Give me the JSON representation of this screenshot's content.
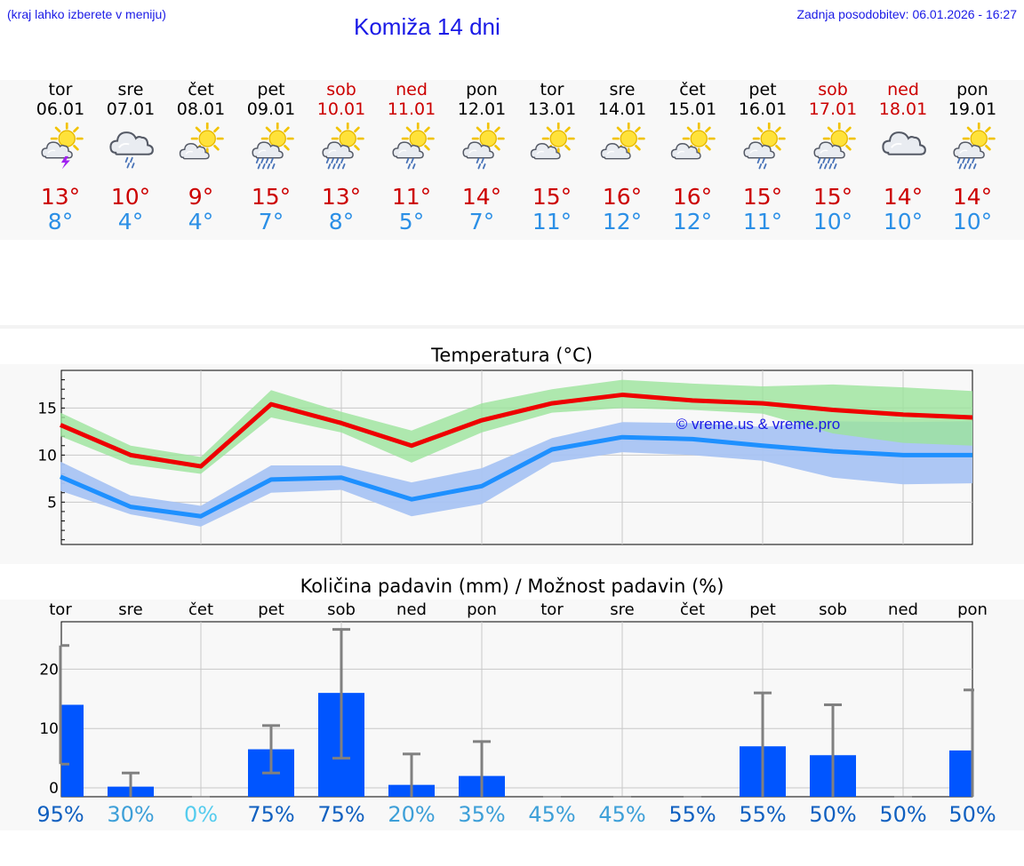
{
  "header": {
    "region_hint": "(kraj lahko izberete v meniju)",
    "title": "Komiža 14 dni",
    "last_update": "Zadnja posodobitev: 06.01.2026 - 16:27"
  },
  "forecast": [
    {
      "day": "tor",
      "date": "06.01",
      "weekend": false,
      "icon": "sun-cloud-thunder-icon",
      "tmax": "13°",
      "tmin": "8°"
    },
    {
      "day": "sre",
      "date": "07.01",
      "weekend": false,
      "icon": "cloud-rain-icon",
      "tmax": "10°",
      "tmin": "4°"
    },
    {
      "day": "čet",
      "date": "08.01",
      "weekend": false,
      "icon": "sun-cloud-icon",
      "tmax": "9°",
      "tmin": "4°"
    },
    {
      "day": "pet",
      "date": "09.01",
      "weekend": false,
      "icon": "sun-cloud-heavy-rain-icon",
      "tmax": "15°",
      "tmin": "7°"
    },
    {
      "day": "sob",
      "date": "10.01",
      "weekend": true,
      "icon": "sun-cloud-heavy-rain-icon",
      "tmax": "13°",
      "tmin": "8°"
    },
    {
      "day": "ned",
      "date": "11.01",
      "weekend": true,
      "icon": "sun-cloud-rain-icon",
      "tmax": "11°",
      "tmin": "5°"
    },
    {
      "day": "pon",
      "date": "12.01",
      "weekend": false,
      "icon": "sun-cloud-rain-icon",
      "tmax": "14°",
      "tmin": "7°"
    },
    {
      "day": "tor",
      "date": "13.01",
      "weekend": false,
      "icon": "sun-cloud-icon",
      "tmax": "15°",
      "tmin": "11°"
    },
    {
      "day": "sre",
      "date": "14.01",
      "weekend": false,
      "icon": "sun-cloud-icon",
      "tmax": "16°",
      "tmin": "12°"
    },
    {
      "day": "čet",
      "date": "15.01",
      "weekend": false,
      "icon": "sun-cloud-icon",
      "tmax": "16°",
      "tmin": "12°"
    },
    {
      "day": "pet",
      "date": "16.01",
      "weekend": false,
      "icon": "sun-cloud-rain-icon",
      "tmax": "15°",
      "tmin": "11°"
    },
    {
      "day": "sob",
      "date": "17.01",
      "weekend": true,
      "icon": "sun-cloud-heavy-rain-icon",
      "tmax": "15°",
      "tmin": "10°"
    },
    {
      "day": "ned",
      "date": "18.01",
      "weekend": true,
      "icon": "cloud-icon",
      "tmax": "14°",
      "tmin": "10°"
    },
    {
      "day": "pon",
      "date": "19.01",
      "weekend": false,
      "icon": "sun-cloud-heavy-rain-icon",
      "tmax": "14°",
      "tmin": "10°"
    }
  ],
  "colors": {
    "max_line": "#ee0000",
    "max_band": "#9be39b",
    "min_line": "#1e90ff",
    "min_band": "#a9c4f3",
    "overlap_band": "#7fc3a8",
    "precip_bar": "#0055ff",
    "error_bar": "#808080"
  },
  "chart_data": [
    {
      "type": "line",
      "title": "Temperatura (°C)",
      "watermark": "© vreme.us & vreme.pro",
      "x": [
        "06.01",
        "07.01",
        "08.01",
        "09.01",
        "10.01",
        "11.01",
        "12.01",
        "13.01",
        "14.01",
        "15.01",
        "16.01",
        "17.01",
        "18.01",
        "19.01"
      ],
      "yticks": [
        5,
        10,
        15
      ],
      "ylim": [
        0.5,
        19
      ],
      "series": [
        {
          "name": "max",
          "values": [
            13.2,
            10.0,
            8.8,
            15.4,
            13.4,
            11.0,
            13.7,
            15.5,
            16.4,
            15.8,
            15.5,
            14.8,
            14.3,
            14.0
          ],
          "band_low": [
            12.0,
            9.0,
            8.0,
            14.0,
            12.4,
            9.2,
            12.4,
            14.5,
            15.0,
            14.8,
            14.4,
            12.3,
            11.3,
            11.0
          ],
          "band_high": [
            14.5,
            11.0,
            9.8,
            16.9,
            14.6,
            12.6,
            15.5,
            17.0,
            18.0,
            17.6,
            17.3,
            17.5,
            17.2,
            16.8
          ]
        },
        {
          "name": "min",
          "values": [
            7.7,
            4.5,
            3.5,
            7.4,
            7.6,
            5.3,
            6.7,
            10.6,
            11.9,
            11.7,
            11.0,
            10.4,
            10.0,
            10.0
          ],
          "band_low": [
            6.2,
            3.7,
            2.4,
            6.0,
            6.3,
            3.5,
            4.8,
            9.2,
            10.3,
            10.0,
            9.4,
            7.6,
            6.9,
            7.0
          ],
          "band_high": [
            9.3,
            5.7,
            4.6,
            8.9,
            8.9,
            7.1,
            8.6,
            11.8,
            13.5,
            13.4,
            13.0,
            13.6,
            13.5,
            13.6
          ]
        }
      ]
    },
    {
      "type": "bar",
      "title": "Količina padavin (mm) / Možnost padavin (%)",
      "categories": [
        "tor",
        "sre",
        "čet",
        "pet",
        "sob",
        "ned",
        "pon",
        "tor",
        "sre",
        "čet",
        "pet",
        "sob",
        "ned",
        "pon"
      ],
      "values": [
        14,
        0.2,
        0,
        6.5,
        16,
        0.5,
        2,
        0,
        0,
        0,
        7,
        5.5,
        0,
        6.3
      ],
      "error_low": [
        4,
        0,
        0,
        2.5,
        5,
        0,
        0,
        0,
        0,
        0,
        0,
        0,
        0,
        0
      ],
      "error_high": [
        24,
        2.5,
        0,
        10.5,
        26.7,
        5.7,
        7.8,
        0,
        0,
        0,
        16,
        14,
        0,
        16.5
      ],
      "yticks": [
        0,
        10,
        20
      ],
      "ylim": [
        -1.5,
        28
      ],
      "probability": [
        "95%",
        "30%",
        "0%",
        "75%",
        "75%",
        "20%",
        "35%",
        "45%",
        "45%",
        "55%",
        "55%",
        "50%",
        "50%",
        "50%"
      ],
      "probability_colors": [
        "#1060c0",
        "#3d9fd8",
        "#55ccee",
        "#1060c0",
        "#1060c0",
        "#3d9fd8",
        "#3d9fd8",
        "#3d9fd8",
        "#3d9fd8",
        "#1060c0",
        "#1060c0",
        "#1060c0",
        "#1060c0",
        "#1060c0"
      ]
    }
  ]
}
